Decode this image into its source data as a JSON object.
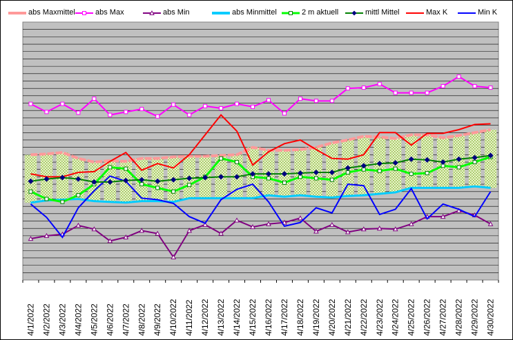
{
  "chart_data": {
    "type": "line",
    "title": "",
    "xlabel": "",
    "ylabel": "",
    "grid": true,
    "legend_position": "top",
    "categories": [
      "4/1/2022",
      "4/2/2022",
      "4/3/2022",
      "4/4/2022",
      "4/5/2022",
      "4/6/2022",
      "4/7/2022",
      "4/8/2022",
      "4/9/2022",
      "4/10/2022",
      "4/11/2022",
      "4/12/2022",
      "4/13/2022",
      "4/14/2022",
      "4/15/2022",
      "4/16/2022",
      "4/17/2022",
      "4/18/2022",
      "4/19/2022",
      "4/20/2022",
      "4/21/2022",
      "4/22/2022",
      "4/23/2022",
      "4/24/2022",
      "4/25/2022",
      "4/26/2022",
      "4/27/2022",
      "4/28/2022",
      "4/29/2022",
      "4/30/2022"
    ],
    "ylim": [
      0,
      35
    ],
    "series": [
      {
        "name": "abs Maxmittel",
        "color": "#ff9999",
        "style": "thick",
        "values": [
          17.0,
          17.1,
          17.3,
          16.5,
          16.0,
          16.2,
          16.1,
          16.5,
          16.5,
          16.7,
          16.8,
          16.8,
          16.9,
          17.0,
          18.0,
          17.6,
          17.6,
          17.7,
          18.0,
          18.6,
          19.0,
          19.5,
          19.4,
          19.2,
          19.7,
          19.7,
          19.3,
          19.6,
          20.0,
          20.4
        ]
      },
      {
        "name": "abs Max",
        "color": "#ff00ff",
        "style": "line-square-open",
        "values": [
          23.9,
          22.8,
          23.9,
          22.7,
          24.6,
          22.4,
          22.8,
          23.2,
          22.2,
          23.8,
          22.4,
          23.6,
          23.3,
          23.9,
          23.5,
          24.4,
          22.6,
          24.6,
          24.3,
          24.3,
          26.0,
          26.1,
          26.6,
          25.4,
          25.4,
          25.4,
          26.3,
          27.6,
          26.3,
          26.1
        ]
      },
      {
        "name": "abs Min",
        "color": "#800080",
        "style": "line-triangle-open",
        "values": [
          5.6,
          6.0,
          6.2,
          7.4,
          6.9,
          5.3,
          5.8,
          6.7,
          6.3,
          3.1,
          6.7,
          7.5,
          6.3,
          8.1,
          7.2,
          7.6,
          7.8,
          8.4,
          6.6,
          7.5,
          6.5,
          6.9,
          7.0,
          6.9,
          7.6,
          8.6,
          8.6,
          9.4,
          8.8,
          7.6
        ]
      },
      {
        "name": "abs Minmittel",
        "color": "#00ccff",
        "style": "thick",
        "values": [
          10.5,
          10.8,
          10.9,
          11.0,
          10.7,
          10.6,
          10.5,
          10.7,
          10.7,
          10.6,
          11.1,
          11.1,
          11.1,
          11.1,
          11.1,
          11.5,
          11.3,
          11.5,
          11.3,
          11.2,
          11.4,
          11.5,
          11.7,
          11.9,
          12.5,
          12.5,
          12.5,
          12.5,
          12.7,
          12.5
        ]
      },
      {
        "name": "2 m aktuell",
        "color": "#00ff00",
        "style": "line-square-open-thick",
        "values": [
          12.0,
          11.0,
          10.6,
          11.5,
          13.0,
          15.3,
          15.1,
          13.0,
          12.5,
          12.0,
          12.9,
          14.0,
          16.5,
          16.0,
          14.0,
          13.8,
          13.2,
          14.0,
          13.8,
          13.6,
          14.6,
          15.0,
          14.8,
          15.1,
          14.4,
          14.5,
          15.5,
          15.3,
          16.0,
          16.7
        ]
      },
      {
        "name": "mittl Mittel",
        "color": "#008000",
        "style": "line-diamond-navy",
        "values": [
          13.4,
          13.7,
          13.9,
          13.7,
          13.3,
          13.3,
          13.5,
          13.6,
          13.4,
          13.6,
          13.8,
          13.9,
          14.0,
          14.0,
          14.4,
          14.4,
          14.4,
          14.5,
          14.6,
          14.6,
          15.2,
          15.5,
          15.8,
          15.9,
          16.4,
          16.3,
          16.0,
          16.4,
          16.6,
          16.9
        ]
      },
      {
        "name": "Max K",
        "color": "#ff0000",
        "style": "line",
        "values": [
          14.4,
          14.0,
          14.0,
          14.6,
          14.7,
          16.1,
          17.3,
          14.9,
          15.8,
          15.2,
          17.0,
          19.7,
          22.4,
          20.2,
          15.6,
          17.4,
          18.5,
          19.0,
          17.7,
          16.5,
          16.4,
          17.0,
          20.0,
          20.0,
          18.3,
          19.9,
          19.9,
          20.4,
          21.1,
          21.2
        ]
      },
      {
        "name": "Min K",
        "color": "#0000ff",
        "style": "line",
        "values": [
          10.3,
          8.5,
          5.8,
          9.8,
          12.1,
          14.1,
          13.4,
          11.1,
          10.9,
          10.4,
          8.6,
          7.7,
          10.9,
          12.3,
          13.0,
          10.6,
          7.3,
          7.8,
          9.8,
          9.1,
          13.0,
          12.8,
          8.9,
          9.6,
          12.4,
          8.3,
          10.3,
          9.6,
          8.6,
          12.0
        ]
      }
    ]
  }
}
